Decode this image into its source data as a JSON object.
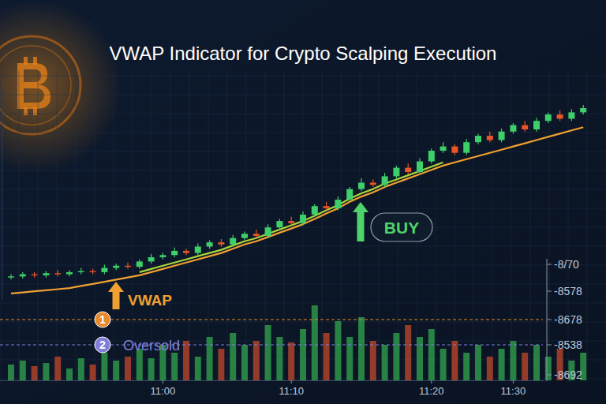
{
  "chart_data": {
    "type": "candlestick",
    "title": "VWAP Indicator for Crypto Scalping Execution",
    "categories": [
      null,
      null,
      null,
      null,
      null,
      null,
      null,
      null,
      null,
      null,
      null,
      null,
      null,
      "11:00",
      null,
      null,
      null,
      null,
      null,
      null,
      null,
      null,
      null,
      null,
      "11:10",
      null,
      null,
      null,
      null,
      null,
      null,
      null,
      null,
      null,
      null,
      null,
      "11:20",
      null,
      null,
      null,
      null,
      null,
      null,
      "11:30",
      null,
      null,
      null,
      null,
      null,
      null
    ],
    "open": [
      10.5,
      11,
      12,
      11.5,
      12.5,
      12,
      13,
      13.5,
      13,
      15,
      16,
      15.5,
      18,
      20,
      21,
      23,
      22,
      25,
      27,
      26,
      29,
      31,
      30,
      34,
      37,
      36,
      40,
      44,
      43,
      47,
      52,
      55,
      54,
      58,
      62,
      60,
      65,
      70,
      72,
      69,
      74,
      77,
      75,
      79,
      82,
      80,
      84,
      87,
      85,
      88
    ],
    "high": [
      12,
      13,
      13,
      13.5,
      14,
      14,
      15,
      14.5,
      16.5,
      17,
      17.5,
      19,
      21.5,
      22,
      24.5,
      24,
      26.5,
      28,
      28.5,
      30.5,
      32,
      33,
      35.5,
      38,
      39,
      41.5,
      45,
      46,
      48.5,
      53,
      57,
      56.5,
      59.5,
      63,
      64,
      66.5,
      71,
      74,
      73,
      75.5,
      78,
      79,
      80.5,
      83,
      84,
      85.5,
      88,
      89,
      89.5,
      91.5
    ],
    "low": [
      9.5,
      10,
      10.5,
      10.5,
      11,
      11,
      12,
      12,
      12,
      14,
      14.5,
      14.5,
      17,
      19,
      20,
      21,
      21,
      24,
      25,
      25,
      28,
      29,
      29,
      33,
      35,
      35,
      39,
      42,
      42,
      46,
      51,
      53,
      53,
      57,
      59,
      59,
      64,
      69,
      68,
      68,
      73,
      74,
      74,
      78,
      79,
      79,
      83,
      84,
      84,
      87
    ],
    "close": [
      11,
      12,
      11.5,
      12.5,
      12,
      13,
      13.5,
      13,
      15,
      16,
      15.5,
      18,
      20,
      21,
      23,
      22,
      25,
      27,
      26,
      29,
      31,
      30,
      34,
      37,
      36,
      40,
      44,
      43,
      47,
      52,
      55,
      54,
      58,
      62,
      60,
      65,
      70,
      72,
      69,
      74,
      77,
      75,
      79,
      82,
      80,
      84,
      87,
      85,
      88,
      90
    ],
    "series": [
      {
        "type": "line",
        "color": "#f0a030",
        "values": [
          3,
          3.5,
          4,
          4.5,
          5,
          5.5,
          6.5,
          7.5,
          8.5,
          9.5,
          10.5,
          11.5,
          13,
          14.5,
          16,
          17.5,
          19,
          20.5,
          22,
          24,
          26,
          27.5,
          29.5,
          31.5,
          33.5,
          35.5,
          38,
          40.5,
          43,
          46,
          48.5,
          50.5,
          53,
          55,
          57,
          59,
          61,
          63,
          64.5,
          66,
          67.5,
          69,
          70.5,
          72,
          73.5,
          75,
          76.5,
          78,
          79.5,
          81
        ]
      },
      {
        "type": "line",
        "color": "#a6d63a",
        "values": [
          null,
          null,
          null,
          null,
          null,
          null,
          null,
          null,
          null,
          null,
          null,
          13,
          14.5,
          16,
          17.5,
          19,
          20.5,
          22,
          23.5,
          25.5,
          27.5,
          29,
          31,
          33,
          35,
          37,
          39.5,
          42,
          44.5,
          47.5,
          50,
          52,
          54.5,
          56.5,
          58.5,
          60.5,
          62.5,
          64.5,
          null,
          null,
          null,
          null,
          null,
          null,
          null,
          null,
          null,
          null,
          null,
          null
        ]
      }
    ],
    "volume": [
      20,
      25,
      18,
      22,
      30,
      15,
      28,
      20,
      35,
      25,
      30,
      40,
      28,
      45,
      35,
      50,
      30,
      55,
      40,
      60,
      45,
      50,
      70,
      55,
      48,
      65,
      95,
      60,
      75,
      55,
      80,
      50,
      45,
      60,
      70,
      55,
      65,
      40,
      50,
      35,
      45,
      30,
      40,
      50,
      35,
      45,
      30,
      40,
      25,
      35
    ],
    "volume_lim": [
      0,
      100
    ],
    "ylim": [
      0,
      100
    ],
    "tick_labels": "x",
    "grid": true,
    "side_labels": [
      "-8/70",
      "-8578",
      "-8678",
      "-8538",
      "-8692"
    ],
    "annotations": [
      {
        "text": "VWAP",
        "color": "#f0a030"
      },
      {
        "text": "BUY",
        "color": "#4fd36a"
      }
    ],
    "levels": [
      {
        "badge": "1",
        "color": "#e8892b"
      },
      {
        "badge": "2",
        "label": "Oversold",
        "color": "#8080dc"
      }
    ]
  }
}
